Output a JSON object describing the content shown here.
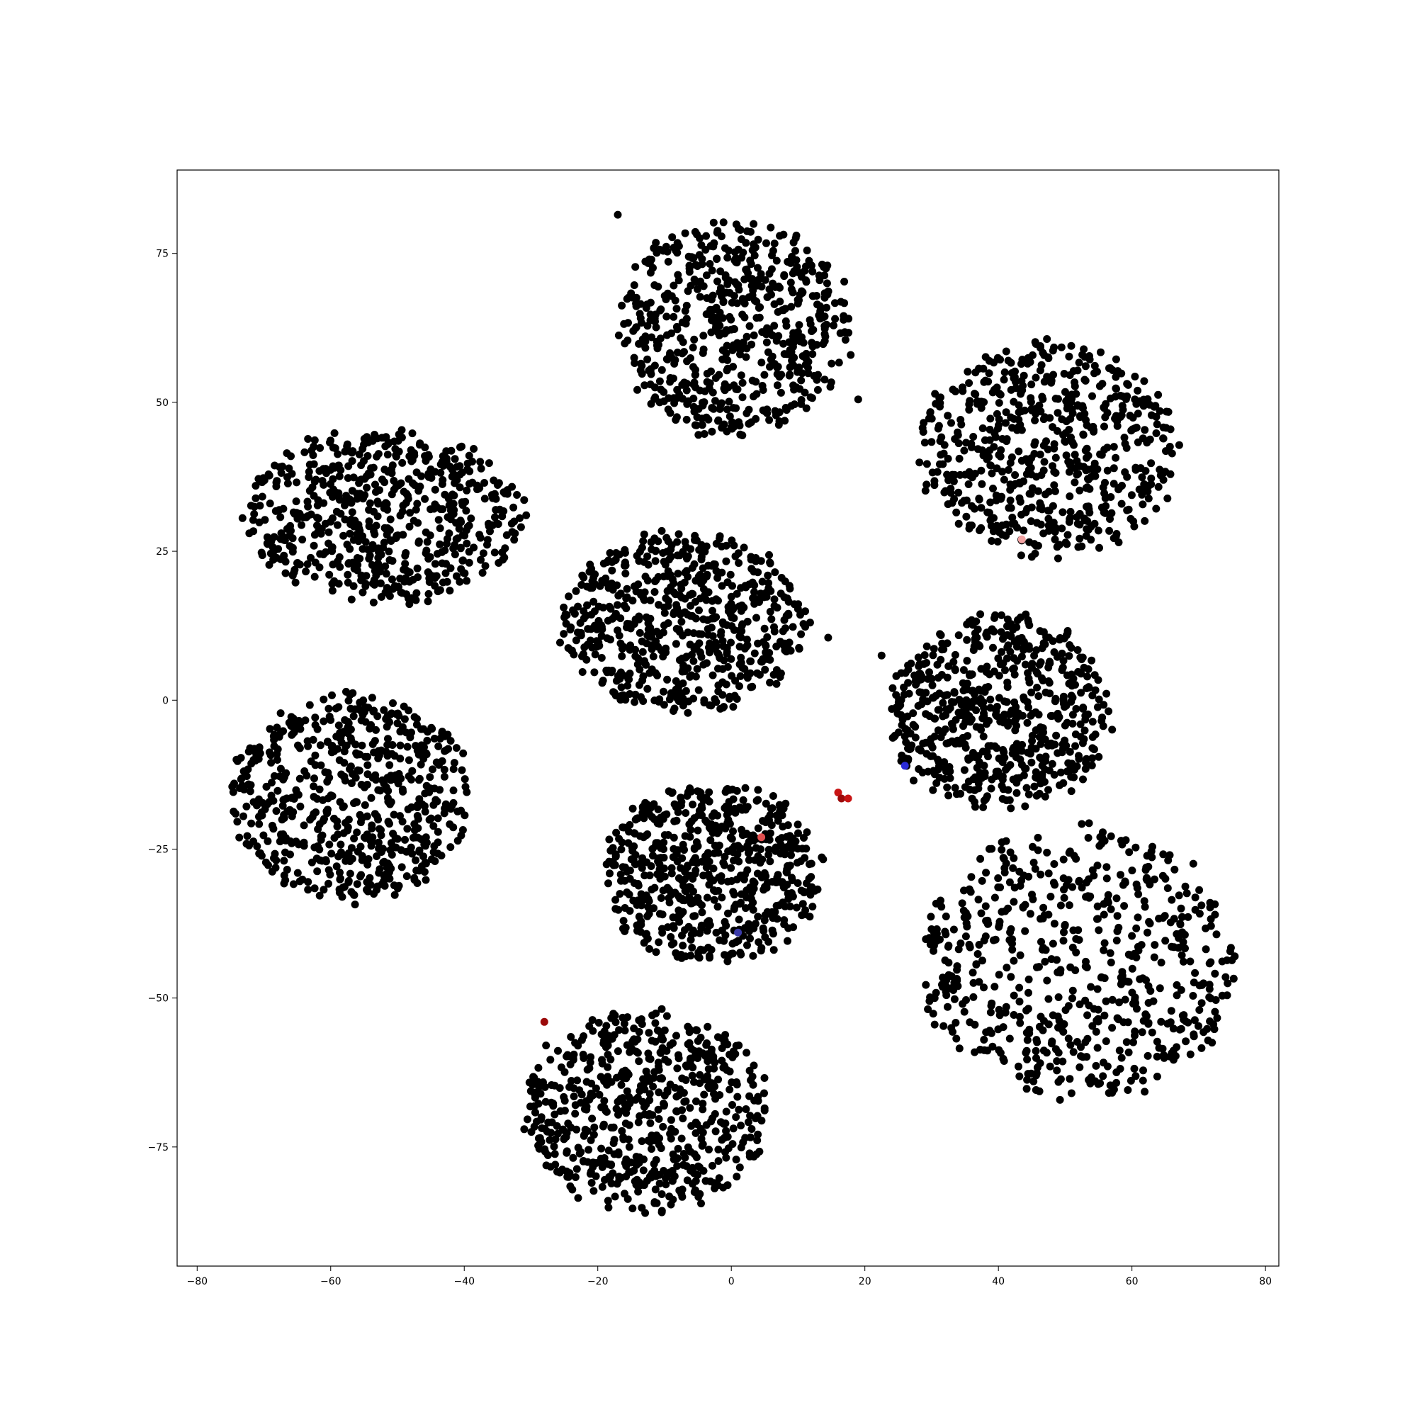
{
  "chart_data": {
    "type": "scatter",
    "title": "",
    "xlabel": "",
    "ylabel": "",
    "xlim": [
      -83,
      82
    ],
    "ylim": [
      -95,
      89
    ],
    "xticks": [
      -80,
      -60,
      -40,
      -20,
      0,
      20,
      40,
      60,
      80
    ],
    "yticks": [
      -75,
      -50,
      -25,
      0,
      25,
      50,
      75
    ],
    "xtick_labels": [
      "−80",
      "−60",
      "−40",
      "−20",
      "0",
      "20",
      "40",
      "60",
      "80"
    ],
    "ytick_labels": [
      "−75",
      "−50",
      "−25",
      "0",
      "25",
      "50",
      "75"
    ],
    "grid": false,
    "legend": "none",
    "clusters": [
      {
        "center": [
          0.5,
          62.5
        ],
        "x_extent": [
          -19,
          17
        ],
        "y_extent": [
          44,
          81
        ],
        "color": "#000000"
      },
      {
        "center": [
          47.5,
          42
        ],
        "x_extent": [
          27,
          67
        ],
        "y_extent": [
          25,
          62
        ],
        "color": "#000000"
      },
      {
        "center": [
          -52,
          31
        ],
        "x_extent": [
          -75,
          -32
        ],
        "y_extent": [
          16,
          46
        ],
        "color": "#000000"
      },
      {
        "center": [
          -7,
          13
        ],
        "x_extent": [
          -26,
          12
        ],
        "y_extent": [
          -3,
          28
        ],
        "color": "#000000"
      },
      {
        "center": [
          40,
          -2
        ],
        "x_extent": [
          23,
          57
        ],
        "y_extent": [
          -18,
          16
        ],
        "color": "#000000"
      },
      {
        "center": [
          -57,
          -16
        ],
        "x_extent": [
          -76,
          -39
        ],
        "y_extent": [
          -35,
          1
        ],
        "color": "#000000"
      },
      {
        "center": [
          -3,
          -29
        ],
        "x_extent": [
          -20,
          14
        ],
        "y_extent": [
          -44,
          -13
        ],
        "color": "#000000"
      },
      {
        "center": [
          52,
          -44
        ],
        "x_extent": [
          26,
          75
        ],
        "y_extent": [
          -67,
          -20
        ],
        "color": "#000000"
      },
      {
        "center": [
          -13,
          -69
        ],
        "x_extent": [
          -37,
          1
        ],
        "y_extent": [
          -87,
          -52
        ],
        "color": "#000000"
      }
    ],
    "highlighted_points": [
      {
        "x": 43.5,
        "y": 27,
        "color": "#f4a3a3"
      },
      {
        "x": 26,
        "y": -11,
        "color": "#2b2bd6"
      },
      {
        "x": 16,
        "y": -15.5,
        "color": "#c81414"
      },
      {
        "x": 16.5,
        "y": -16.5,
        "color": "#9b0a0a"
      },
      {
        "x": 17.5,
        "y": -16.5,
        "color": "#c81414"
      },
      {
        "x": 4.5,
        "y": -23,
        "color": "#e05050"
      },
      {
        "x": 1,
        "y": -39,
        "color": "#3a3aa8"
      },
      {
        "x": -28,
        "y": -54,
        "color": "#9b0a0a"
      }
    ],
    "outlier_points": [
      {
        "x": -17,
        "y": 81.5
      },
      {
        "x": 14.5,
        "y": 10.5
      },
      {
        "x": 22.5,
        "y": 7.5
      },
      {
        "x": 19,
        "y": 50.5
      },
      {
        "x": 47.5,
        "y": -36
      }
    ]
  }
}
